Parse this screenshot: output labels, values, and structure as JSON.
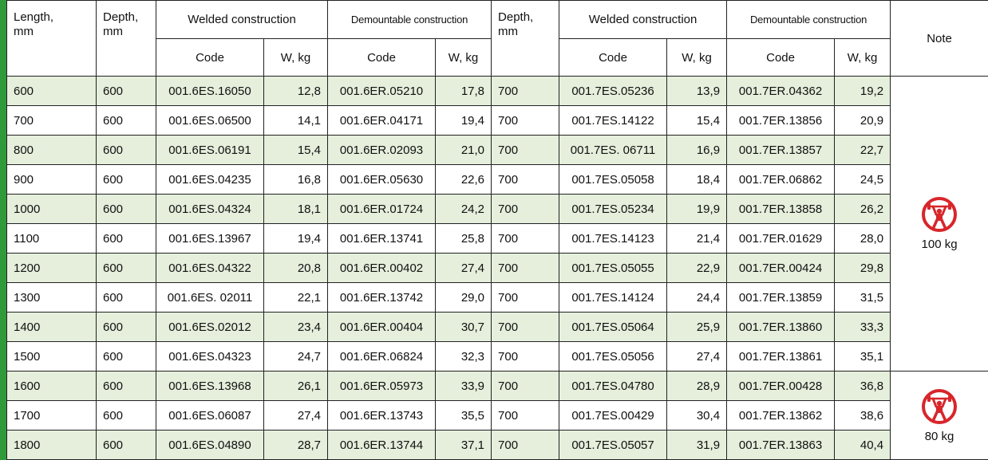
{
  "header": {
    "length": "Length,\nmm",
    "note": "Note",
    "groups": [
      {
        "depth": "Depth,\nmm",
        "welded": "Welded construction",
        "demountable": "Demountable construction"
      },
      {
        "depth": "Depth,\nmm",
        "welded": "Welded construction",
        "demountable": "Demountable construction"
      }
    ],
    "subheaders": [
      "Code",
      "W, kg",
      "Code",
      "W, kg",
      "Code",
      "W, kg",
      "Code",
      "W, kg"
    ]
  },
  "rows": [
    [
      "600",
      "600",
      "001.6ES.16050",
      "12,8",
      "001.6ER.05210",
      "17,8",
      "700",
      "001.7ES.05236",
      "13,9",
      "001.7ER.04362",
      "19,2"
    ],
    [
      "700",
      "600",
      "001.6ES.06500",
      "14,1",
      "001.6ER.04171",
      "19,4",
      "700",
      "001.7ES.14122",
      "15,4",
      "001.7ER.13856",
      "20,9"
    ],
    [
      "800",
      "600",
      "001.6ES.06191",
      "15,4",
      "001.6ER.02093",
      "21,0",
      "700",
      "001.7ES. 06711",
      "16,9",
      "001.7ER.13857",
      "22,7"
    ],
    [
      "900",
      "600",
      "001.6ES.04235",
      "16,8",
      "001.6ER.05630",
      "22,6",
      "700",
      "001.7ES.05058",
      "18,4",
      "001.7ER.06862",
      "24,5"
    ],
    [
      "1000",
      "600",
      "001.6ES.04324",
      "18,1",
      "001.6ER.01724",
      "24,2",
      "700",
      "001.7ES.05234",
      "19,9",
      "001.7ER.13858",
      "26,2"
    ],
    [
      "1100",
      "600",
      "001.6ES.13967",
      "19,4",
      "001.6ER.13741",
      "25,8",
      "700",
      "001.7ES.14123",
      "21,4",
      "001.7ER.01629",
      "28,0"
    ],
    [
      "1200",
      "600",
      "001.6ES.04322",
      "20,8",
      "001.6ER.00402",
      "27,4",
      "700",
      "001.7ES.05055",
      "22,9",
      "001.7ER.00424",
      "29,8"
    ],
    [
      "1300",
      "600",
      "001.6ES. 02011",
      "22,1",
      "001.6ER.13742",
      "29,0",
      "700",
      "001.7ES.14124",
      "24,4",
      "001.7ER.13859",
      "31,5"
    ],
    [
      "1400",
      "600",
      "001.6ES.02012",
      "23,4",
      "001.6ER.00404",
      "30,7",
      "700",
      "001.7ES.05064",
      "25,9",
      "001.7ER.13860",
      "33,3"
    ],
    [
      "1500",
      "600",
      "001.6ES.04323",
      "24,7",
      "001.6ER.06824",
      "32,3",
      "700",
      "001.7ES.05056",
      "27,4",
      "001.7ER.13861",
      "35,1"
    ],
    [
      "1600",
      "600",
      "001.6ES.13968",
      "26,1",
      "001.6ER.05973",
      "33,9",
      "700",
      "001.7ES.04780",
      "28,9",
      "001.7ER.00428",
      "36,8"
    ],
    [
      "1700",
      "600",
      "001.6ES.06087",
      "27,4",
      "001.6ER.13743",
      "35,5",
      "700",
      "001.7ES.00429",
      "30,4",
      "001.7ER.13862",
      "38,6"
    ],
    [
      "1800",
      "600",
      "001.6ES.04890",
      "28,7",
      "001.6ER.13744",
      "37,1",
      "700",
      "001.7ES.05057",
      "31,9",
      "001.7ER.13863",
      "40,4"
    ]
  ],
  "notes": [
    "100 kg",
    "80 kg"
  ]
}
